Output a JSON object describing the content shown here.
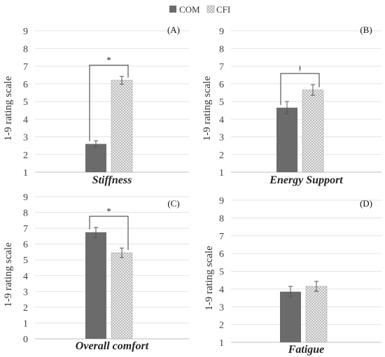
{
  "legend": [
    {
      "name": "COM",
      "color": "#6b6b6b",
      "pattern": "solid"
    },
    {
      "name": "CFI",
      "color": "#e6e6e6",
      "pattern": "crosshatch"
    }
  ],
  "chart_data": [
    {
      "type": "bar",
      "panel_label": "(A)",
      "xlabel": "Stiffness",
      "ylabel": "1-9 rating scale",
      "ylim": [
        1,
        9
      ],
      "yticks": [
        1,
        2,
        3,
        4,
        5,
        6,
        7,
        8,
        9
      ],
      "series": [
        {
          "name": "COM",
          "value": 2.6,
          "error": 0.18
        },
        {
          "name": "CFI",
          "value": 6.2,
          "error": 0.22
        }
      ],
      "significance": "*",
      "grid": true
    },
    {
      "type": "bar",
      "panel_label": "(B)",
      "xlabel": "Energy Support",
      "ylabel": "1-9 rating scale",
      "ylim": [
        1,
        9
      ],
      "yticks": [
        1,
        2,
        3,
        4,
        5,
        6,
        7,
        8,
        9
      ],
      "series": [
        {
          "name": "COM",
          "value": 4.65,
          "error": 0.35
        },
        {
          "name": "CFI",
          "value": 5.65,
          "error": 0.3
        }
      ],
      "significance": "ǂ",
      "grid": true
    },
    {
      "type": "bar",
      "panel_label": "(C)",
      "xlabel": "Overall comfort",
      "ylabel": "1-9 rating scale",
      "ylim": [
        0,
        9
      ],
      "yticks": [
        0,
        1,
        2,
        3,
        4,
        5,
        6,
        7,
        8,
        9
      ],
      "series": [
        {
          "name": "COM",
          "value": 6.75,
          "error": 0.3
        },
        {
          "name": "CFI",
          "value": 5.45,
          "error": 0.3
        }
      ],
      "significance": "*",
      "grid": true
    },
    {
      "type": "bar",
      "panel_label": "(D)",
      "xlabel": "Fatigue",
      "ylabel": "1-9 rating scale",
      "ylim": [
        1,
        9
      ],
      "yticks": [
        1,
        2,
        3,
        4,
        5,
        6,
        7,
        8,
        9
      ],
      "series": [
        {
          "name": "COM",
          "value": 3.85,
          "error": 0.3
        },
        {
          "name": "CFI",
          "value": 4.15,
          "error": 0.28
        }
      ],
      "significance": "",
      "grid": true
    }
  ]
}
